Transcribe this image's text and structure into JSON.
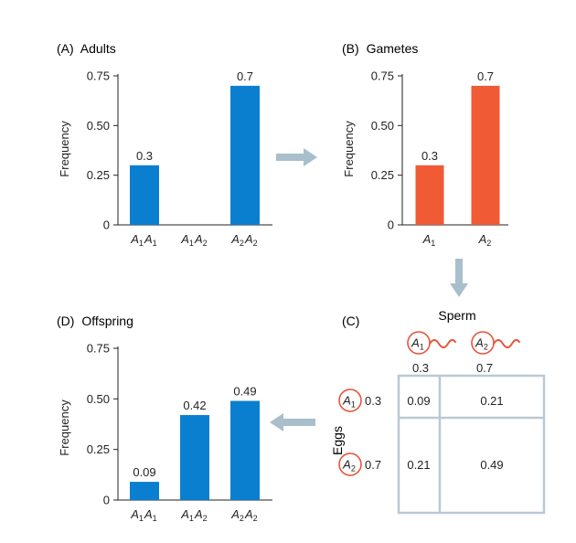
{
  "chart_data": [
    {
      "type": "bar",
      "panel_label": "(A)",
      "title": "Adults",
      "ylabel": "Frequency",
      "yticks": [
        "0",
        "0.25",
        "0.50",
        "0.75"
      ],
      "ylim": [
        0,
        0.75
      ],
      "categories": [
        {
          "base": [
            "A",
            "A"
          ],
          "subs": [
            "1",
            "1"
          ]
        },
        {
          "base": [
            "A",
            "A"
          ],
          "subs": [
            "1",
            "2"
          ]
        },
        {
          "base": [
            "A",
            "A"
          ],
          "subs": [
            "2",
            "2"
          ]
        }
      ],
      "values": [
        0.3,
        0,
        0.7
      ],
      "labels": [
        "0.3",
        "",
        "0.7"
      ],
      "color": "#0a7fd0"
    },
    {
      "type": "bar",
      "panel_label": "(B)",
      "title": "Gametes",
      "ylabel": "Frequency",
      "yticks": [
        "0",
        "0.25",
        "0.50",
        "0.75"
      ],
      "ylim": [
        0,
        0.75
      ],
      "categories": [
        {
          "base": [
            "A"
          ],
          "subs": [
            "1"
          ]
        },
        {
          "base": [
            "A"
          ],
          "subs": [
            "2"
          ]
        }
      ],
      "values": [
        0.3,
        0.7
      ],
      "labels": [
        "0.3",
        "0.7"
      ],
      "color": "#f05a35"
    },
    {
      "type": "table",
      "panel_label": "(C)",
      "column_header": "Sperm",
      "row_header": "Eggs",
      "columns": [
        {
          "allele": "A",
          "sub": "1",
          "freq": "0.3"
        },
        {
          "allele": "A",
          "sub": "2",
          "freq": "0.7"
        }
      ],
      "rows": [
        {
          "allele": "A",
          "sub": "1",
          "freq": "0.3",
          "cells": [
            "0.09",
            "0.21"
          ]
        },
        {
          "allele": "A",
          "sub": "2",
          "freq": "0.7",
          "cells": [
            "0.21",
            "0.49"
          ]
        }
      ]
    },
    {
      "type": "bar",
      "panel_label": "(D)",
      "title": "Offspring",
      "ylabel": "Frequency",
      "yticks": [
        "0",
        "0.25",
        "0.50",
        "0.75"
      ],
      "ylim": [
        0,
        0.75
      ],
      "categories": [
        {
          "base": [
            "A",
            "A"
          ],
          "subs": [
            "1",
            "1"
          ]
        },
        {
          "base": [
            "A",
            "A"
          ],
          "subs": [
            "1",
            "2"
          ]
        },
        {
          "base": [
            "A",
            "A"
          ],
          "subs": [
            "2",
            "2"
          ]
        }
      ],
      "values": [
        0.09,
        0.42,
        0.49
      ],
      "labels": [
        "0.09",
        "0.42",
        "0.49"
      ],
      "color": "#0a7fd0"
    }
  ],
  "colors": {
    "blue_bar": "#0a7fd0",
    "orange_bar": "#f05a35",
    "allele_circle": "#e8553a",
    "arrow": "#a9bfcc",
    "table_border": "#b9c9d3"
  },
  "icons": {
    "sperm": "sperm-icon",
    "arrow": "flow-arrow-icon"
  }
}
